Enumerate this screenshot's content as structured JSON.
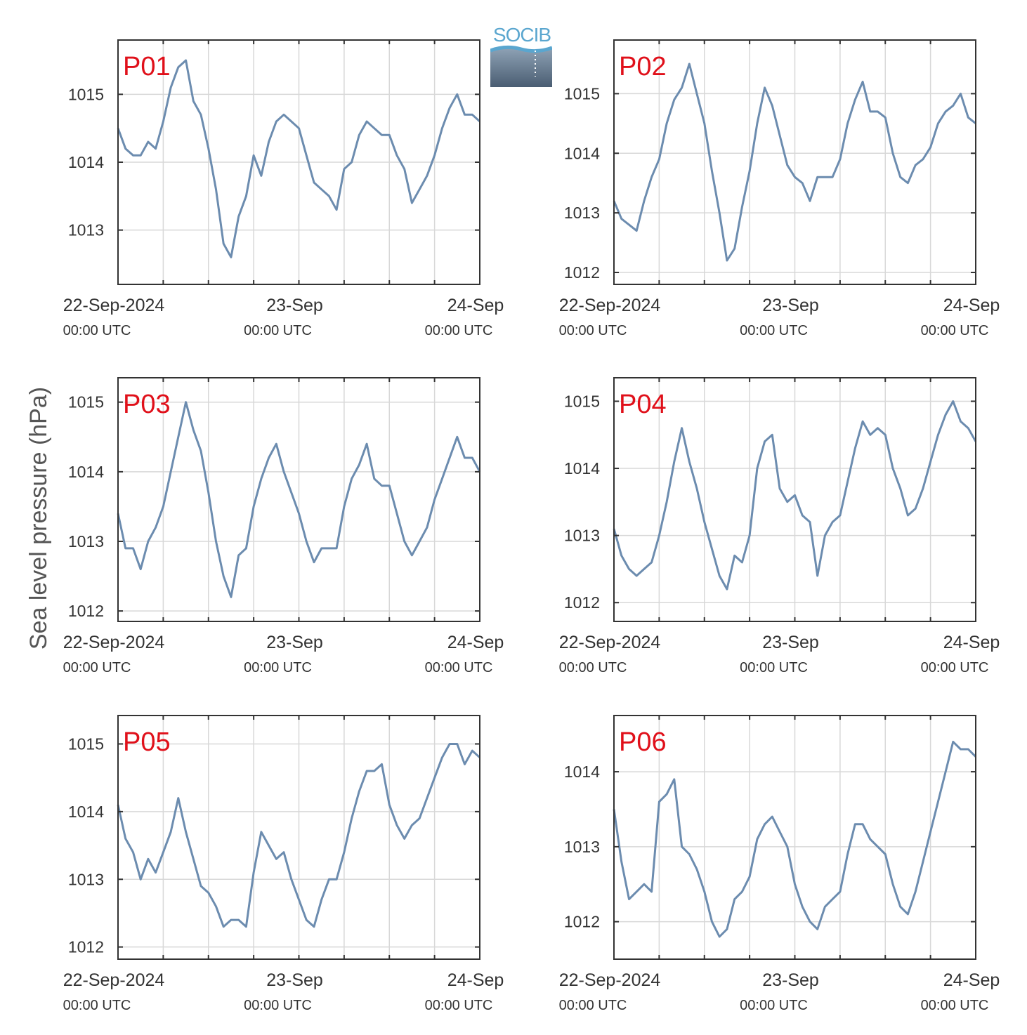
{
  "y_axis_label": "Sea level pressure (hPa)",
  "logo": {
    "text": "SOCIB"
  },
  "colors": {
    "line": "#6c8caf",
    "panel_label": "#e0101a",
    "axis": "#333333",
    "grid": "#d8d8d8"
  },
  "x_tick_labels": [
    {
      "date": "22-Sep-2024",
      "time": "00:00 UTC"
    },
    {
      "date": "23-Sep",
      "time": "00:00 UTC"
    },
    {
      "date": "24-Sep",
      "time": "00:00 UTC"
    }
  ],
  "chart_data": [
    {
      "type": "line",
      "label": "P01",
      "x_range": [
        "2024-09-22 00:00",
        "2024-09-24 00:00"
      ],
      "ylim": [
        1012.2,
        1015.8
      ],
      "yticks": [
        1013,
        1014,
        1015
      ],
      "ytick_labels": [
        "1013",
        "1014",
        "1015"
      ],
      "grid": true,
      "x_hours": [
        0,
        1,
        2,
        3,
        4,
        5,
        6,
        7,
        8,
        9,
        10,
        11,
        12,
        13,
        14,
        15,
        16,
        17,
        18,
        19,
        20,
        21,
        22,
        23,
        24,
        25,
        26,
        27,
        28,
        29,
        30,
        31,
        32,
        33,
        34,
        35,
        36,
        37,
        38,
        39,
        40,
        41,
        42,
        43,
        44,
        45,
        46,
        47,
        48
      ],
      "values": [
        1014.5,
        1014.2,
        1014.1,
        1014.1,
        1014.3,
        1014.2,
        1014.6,
        1015.1,
        1015.4,
        1015.5,
        1014.9,
        1014.7,
        1014.2,
        1013.6,
        1012.8,
        1012.6,
        1013.2,
        1013.5,
        1014.1,
        1013.8,
        1014.3,
        1014.6,
        1014.7,
        1014.6,
        1014.5,
        1014.1,
        1013.7,
        1013.6,
        1013.5,
        1013.3,
        1013.9,
        1014.0,
        1014.4,
        1014.6,
        1014.5,
        1014.4,
        1014.4,
        1014.1,
        1013.9,
        1013.4,
        1013.6,
        1013.8,
        1014.1,
        1014.5,
        1014.8,
        1015.0,
        1014.7,
        1014.7,
        1014.6
      ]
    },
    {
      "type": "line",
      "label": "P02",
      "x_range": [
        "2024-09-22 00:00",
        "2024-09-24 00:00"
      ],
      "ylim": [
        1011.8,
        1015.9
      ],
      "yticks": [
        1012,
        1013,
        1014,
        1015
      ],
      "ytick_labels": [
        "1012",
        "1013",
        "1014",
        "1015"
      ],
      "grid": true,
      "x_hours": [
        0,
        1,
        2,
        3,
        4,
        5,
        6,
        7,
        8,
        9,
        10,
        11,
        12,
        13,
        14,
        15,
        16,
        17,
        18,
        19,
        20,
        21,
        22,
        23,
        24,
        25,
        26,
        27,
        28,
        29,
        30,
        31,
        32,
        33,
        34,
        35,
        36,
        37,
        38,
        39,
        40,
        41,
        42,
        43,
        44,
        45,
        46,
        47,
        48
      ],
      "values": [
        1013.2,
        1012.9,
        1012.8,
        1012.7,
        1013.2,
        1013.6,
        1013.9,
        1014.5,
        1014.9,
        1015.1,
        1015.5,
        1015.0,
        1014.5,
        1013.7,
        1013.0,
        1012.2,
        1012.4,
        1013.1,
        1013.7,
        1014.5,
        1015.1,
        1014.8,
        1014.3,
        1013.8,
        1013.6,
        1013.5,
        1013.2,
        1013.6,
        1013.6,
        1013.6,
        1013.9,
        1014.5,
        1014.9,
        1015.2,
        1014.7,
        1014.7,
        1014.6,
        1014.0,
        1013.6,
        1013.5,
        1013.8,
        1013.9,
        1014.1,
        1014.5,
        1014.7,
        1014.8,
        1015.0,
        1014.6,
        1014.5
      ]
    },
    {
      "type": "line",
      "label": "P03",
      "x_range": [
        "2024-09-22 00:00",
        "2024-09-24 00:00"
      ],
      "ylim": [
        1011.85,
        1015.35
      ],
      "yticks": [
        1012,
        1013,
        1014,
        1015
      ],
      "ytick_labels": [
        "1012",
        "1013",
        "1014",
        "1015"
      ],
      "grid": true,
      "x_hours": [
        0,
        1,
        2,
        3,
        4,
        5,
        6,
        7,
        8,
        9,
        10,
        11,
        12,
        13,
        14,
        15,
        16,
        17,
        18,
        19,
        20,
        21,
        22,
        23,
        24,
        25,
        26,
        27,
        28,
        29,
        30,
        31,
        32,
        33,
        34,
        35,
        36,
        37,
        38,
        39,
        40,
        41,
        42,
        43,
        44,
        45,
        46,
        47,
        48
      ],
      "values": [
        1013.4,
        1012.9,
        1012.9,
        1012.6,
        1013.0,
        1013.2,
        1013.5,
        1014.0,
        1014.5,
        1015.0,
        1014.6,
        1014.3,
        1013.7,
        1013.0,
        1012.5,
        1012.2,
        1012.8,
        1012.9,
        1013.5,
        1013.9,
        1014.2,
        1014.4,
        1014.0,
        1013.7,
        1013.4,
        1013.0,
        1012.7,
        1012.9,
        1012.9,
        1012.9,
        1013.5,
        1013.9,
        1014.1,
        1014.4,
        1013.9,
        1013.8,
        1013.8,
        1013.4,
        1013.0,
        1012.8,
        1013.0,
        1013.2,
        1013.6,
        1013.9,
        1014.2,
        1014.5,
        1014.2,
        1014.2,
        1014.0
      ]
    },
    {
      "type": "line",
      "label": "P04",
      "x_range": [
        "2024-09-22 00:00",
        "2024-09-24 00:00"
      ],
      "ylim": [
        1011.72,
        1015.35
      ],
      "yticks": [
        1012,
        1013,
        1014,
        1015
      ],
      "ytick_labels": [
        "1012",
        "1013",
        "1014",
        "1015"
      ],
      "grid": true,
      "x_hours": [
        0,
        1,
        2,
        3,
        4,
        5,
        6,
        7,
        8,
        9,
        10,
        11,
        12,
        13,
        14,
        15,
        16,
        17,
        18,
        19,
        20,
        21,
        22,
        23,
        24,
        25,
        26,
        27,
        28,
        29,
        30,
        31,
        32,
        33,
        34,
        35,
        36,
        37,
        38,
        39,
        40,
        41,
        42,
        43,
        44,
        45,
        46,
        47,
        48
      ],
      "values": [
        1013.1,
        1012.7,
        1012.5,
        1012.4,
        1012.5,
        1012.6,
        1013.0,
        1013.5,
        1014.1,
        1014.6,
        1014.1,
        1013.7,
        1013.2,
        1012.8,
        1012.4,
        1012.2,
        1012.7,
        1012.6,
        1013.0,
        1014.0,
        1014.4,
        1014.5,
        1013.7,
        1013.5,
        1013.6,
        1013.3,
        1013.2,
        1012.4,
        1013.0,
        1013.2,
        1013.3,
        1013.8,
        1014.3,
        1014.7,
        1014.5,
        1014.6,
        1014.5,
        1014.0,
        1013.7,
        1013.3,
        1013.4,
        1013.7,
        1014.1,
        1014.5,
        1014.8,
        1015.0,
        1014.7,
        1014.6,
        1014.4
      ]
    },
    {
      "type": "line",
      "label": "P05",
      "x_range": [
        "2024-09-22 00:00",
        "2024-09-24 00:00"
      ],
      "ylim": [
        1011.82,
        1015.42
      ],
      "yticks": [
        1012,
        1013,
        1014,
        1015
      ],
      "ytick_labels": [
        "1012",
        "1013",
        "1014",
        "1015"
      ],
      "grid": true,
      "x_hours": [
        0,
        1,
        2,
        3,
        4,
        5,
        6,
        7,
        8,
        9,
        10,
        11,
        12,
        13,
        14,
        15,
        16,
        17,
        18,
        19,
        20,
        21,
        22,
        23,
        24,
        25,
        26,
        27,
        28,
        29,
        30,
        31,
        32,
        33,
        34,
        35,
        36,
        37,
        38,
        39,
        40,
        41,
        42,
        43,
        44,
        45,
        46,
        47,
        48
      ],
      "values": [
        1014.1,
        1013.6,
        1013.4,
        1013.0,
        1013.3,
        1013.1,
        1013.4,
        1013.7,
        1014.2,
        1013.7,
        1013.3,
        1012.9,
        1012.8,
        1012.6,
        1012.3,
        1012.4,
        1012.4,
        1012.3,
        1013.1,
        1013.7,
        1013.5,
        1013.3,
        1013.4,
        1013.0,
        1012.7,
        1012.4,
        1012.3,
        1012.7,
        1013.0,
        1013.0,
        1013.4,
        1013.9,
        1014.3,
        1014.6,
        1014.6,
        1014.7,
        1014.1,
        1013.8,
        1013.6,
        1013.8,
        1013.9,
        1014.2,
        1014.5,
        1014.8,
        1015.0,
        1015.0,
        1014.7,
        1014.9,
        1014.8
      ]
    },
    {
      "type": "line",
      "label": "P06",
      "x_range": [
        "2024-09-22 00:00",
        "2024-09-24 00:00"
      ],
      "ylim": [
        1011.5,
        1014.75
      ],
      "yticks": [
        1012,
        1013,
        1014
      ],
      "ytick_labels": [
        "1012",
        "1013",
        "1014"
      ],
      "grid": true,
      "x_hours": [
        0,
        1,
        2,
        3,
        4,
        5,
        6,
        7,
        8,
        9,
        10,
        11,
        12,
        13,
        14,
        15,
        16,
        17,
        18,
        19,
        20,
        21,
        22,
        23,
        24,
        25,
        26,
        27,
        28,
        29,
        30,
        31,
        32,
        33,
        34,
        35,
        36,
        37,
        38,
        39,
        40,
        41,
        42,
        43,
        44,
        45,
        46,
        47,
        48
      ],
      "values": [
        1013.5,
        1012.8,
        1012.3,
        1012.4,
        1012.5,
        1012.4,
        1013.6,
        1013.7,
        1013.9,
        1013.0,
        1012.9,
        1012.7,
        1012.4,
        1012.0,
        1011.8,
        1011.9,
        1012.3,
        1012.4,
        1012.6,
        1013.1,
        1013.3,
        1013.4,
        1013.2,
        1013.0,
        1012.5,
        1012.2,
        1012.0,
        1011.9,
        1012.2,
        1012.3,
        1012.4,
        1012.9,
        1013.3,
        1013.3,
        1013.1,
        1013.0,
        1012.9,
        1012.5,
        1012.2,
        1012.1,
        1012.4,
        1012.8,
        1013.2,
        1013.6,
        1014.0,
        1014.4,
        1014.3,
        1014.3,
        1014.2
      ]
    }
  ]
}
